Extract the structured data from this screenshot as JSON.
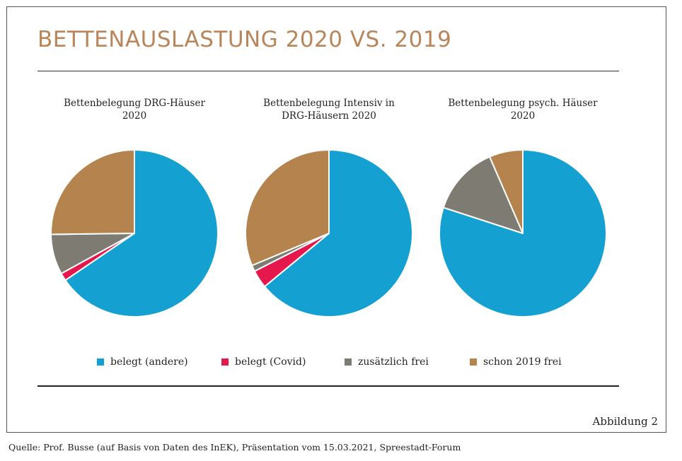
{
  "title": "BETTENAUSLASTUNG 2020 VS. 2019",
  "legend": [
    {
      "label": "belegt (andere)",
      "color": "#14a0d0"
    },
    {
      "label": "belegt (Covid)",
      "color": "#e5174d"
    },
    {
      "label": "zusätzlich frei",
      "color": "#7e7c72"
    },
    {
      "label": "schon 2019 frei",
      "color": "#b5834d"
    }
  ],
  "chart_data": [
    {
      "type": "pie",
      "title_line1": "Bettenbelegung DRG-Häuser",
      "title_line2": "2020",
      "categories": [
        "belegt (andere)",
        "belegt (Covid)",
        "zusätzlich frei",
        "schon 2019 frei"
      ],
      "values": [
        65.5,
        1.5,
        7.8,
        25.2
      ]
    },
    {
      "type": "pie",
      "title_line1": "Bettenbelegung Intensiv in",
      "title_line2": "DRG-Häusern 2020",
      "categories": [
        "belegt (andere)",
        "belegt (Covid)",
        "zusätzlich frei",
        "schon 2019 frei"
      ],
      "values": [
        64.0,
        3.5,
        1.2,
        31.3
      ]
    },
    {
      "type": "pie",
      "title_line1": "Bettenbelegung psych. Häuser",
      "title_line2": "2020",
      "categories": [
        "belegt (andere)",
        "belegt (Covid)",
        "zusätzlich frei",
        "schon 2019 frei"
      ],
      "values": [
        80.0,
        0,
        13.5,
        6.5
      ]
    }
  ],
  "figure_label": "Abbildung 2",
  "source": "Quelle: Prof. Busse (auf Basis von Daten des InEK), Präsentation vom 15.03.2021, Spreestadt-Forum"
}
